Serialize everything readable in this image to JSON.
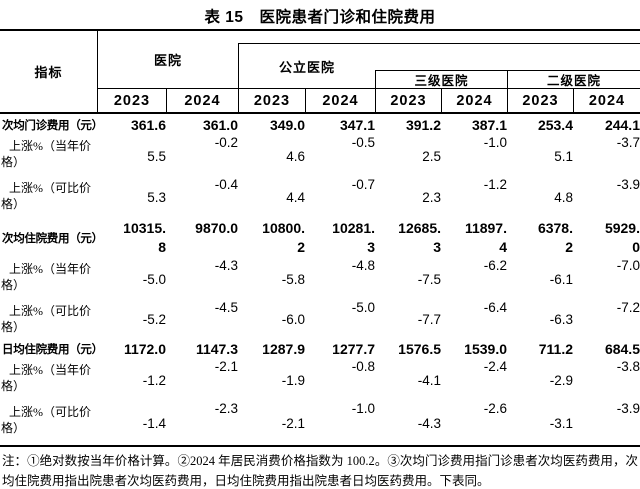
{
  "title": "表 15　医院患者门诊和住院费用",
  "table": {
    "header": {
      "indicator": "指标",
      "groups": [
        {
          "label": "医院"
        },
        {
          "label": "公立医院"
        },
        {
          "label": "三级医院"
        },
        {
          "label": "二级医院"
        }
      ],
      "years": [
        "2023",
        "2024",
        "2023",
        "2024",
        "2023",
        "2024",
        "2023",
        "2024"
      ]
    },
    "rows": [
      {
        "label": "次均门诊费用（元）",
        "style": "metric",
        "values": [
          "361.6",
          "361.0",
          "349.0",
          "347.1",
          "391.2",
          "387.1",
          "253.4",
          "244.1"
        ]
      },
      {
        "label": "上涨%（当年价\n格）",
        "style": "pct",
        "values": [
          "5.5",
          "-0.2",
          "4.6",
          "-0.5",
          "2.5",
          "-1.0",
          "5.1",
          "-3.7"
        ]
      },
      {
        "label": "上涨%（可比价\n格）",
        "style": "pct",
        "values": [
          "5.3",
          "-0.4",
          "4.4",
          "-0.7",
          "2.3",
          "-1.2",
          "4.8",
          "-3.9"
        ]
      },
      {
        "label": "次均住院费用（元）",
        "style": "metric-wrap",
        "values": [
          "10315.\n8",
          "9870.0",
          "10800.\n2",
          "10281.\n3",
          "12685.\n3",
          "11897.\n4",
          "6378.\n2",
          "5929.\n0"
        ]
      },
      {
        "label": "上涨%（当年价\n格）",
        "style": "pct",
        "values": [
          "-5.0",
          "-4.3",
          "-5.8",
          "-4.8",
          "-7.5",
          "-6.2",
          "-6.1",
          "-7.0"
        ]
      },
      {
        "label": "上涨%（可比价\n格）",
        "style": "pct",
        "values": [
          "-5.2",
          "-4.5",
          "-6.0",
          "-5.0",
          "-7.7",
          "-6.4",
          "-6.3",
          "-7.2"
        ]
      },
      {
        "label": "日均住院费用（元）",
        "style": "metric",
        "values": [
          "1172.0",
          "1147.3",
          "1287.9",
          "1277.7",
          "1576.5",
          "1539.0",
          "711.2",
          "684.5"
        ]
      },
      {
        "label": "上涨%（当年价\n格）",
        "style": "pct",
        "values": [
          "-1.2",
          "-2.1",
          "-1.9",
          "-0.8",
          "-4.1",
          "-2.4",
          "-2.9",
          "-3.8"
        ]
      },
      {
        "label": "上涨%（可比价\n格）",
        "style": "pct",
        "values": [
          "-1.4",
          "-2.3",
          "-2.1",
          "-1.0",
          "-4.3",
          "-2.6",
          "-3.1",
          "-3.9"
        ]
      }
    ]
  },
  "footnote": "注：①绝对数按当年价格计算。②2024 年居民消费价格指数为 100.2。③次均门诊费用指门诊患者次均医药费用，次均住院费用指出院患者次均医药费用，日均住院费用指出院患者日均医药费用。下表同。"
}
